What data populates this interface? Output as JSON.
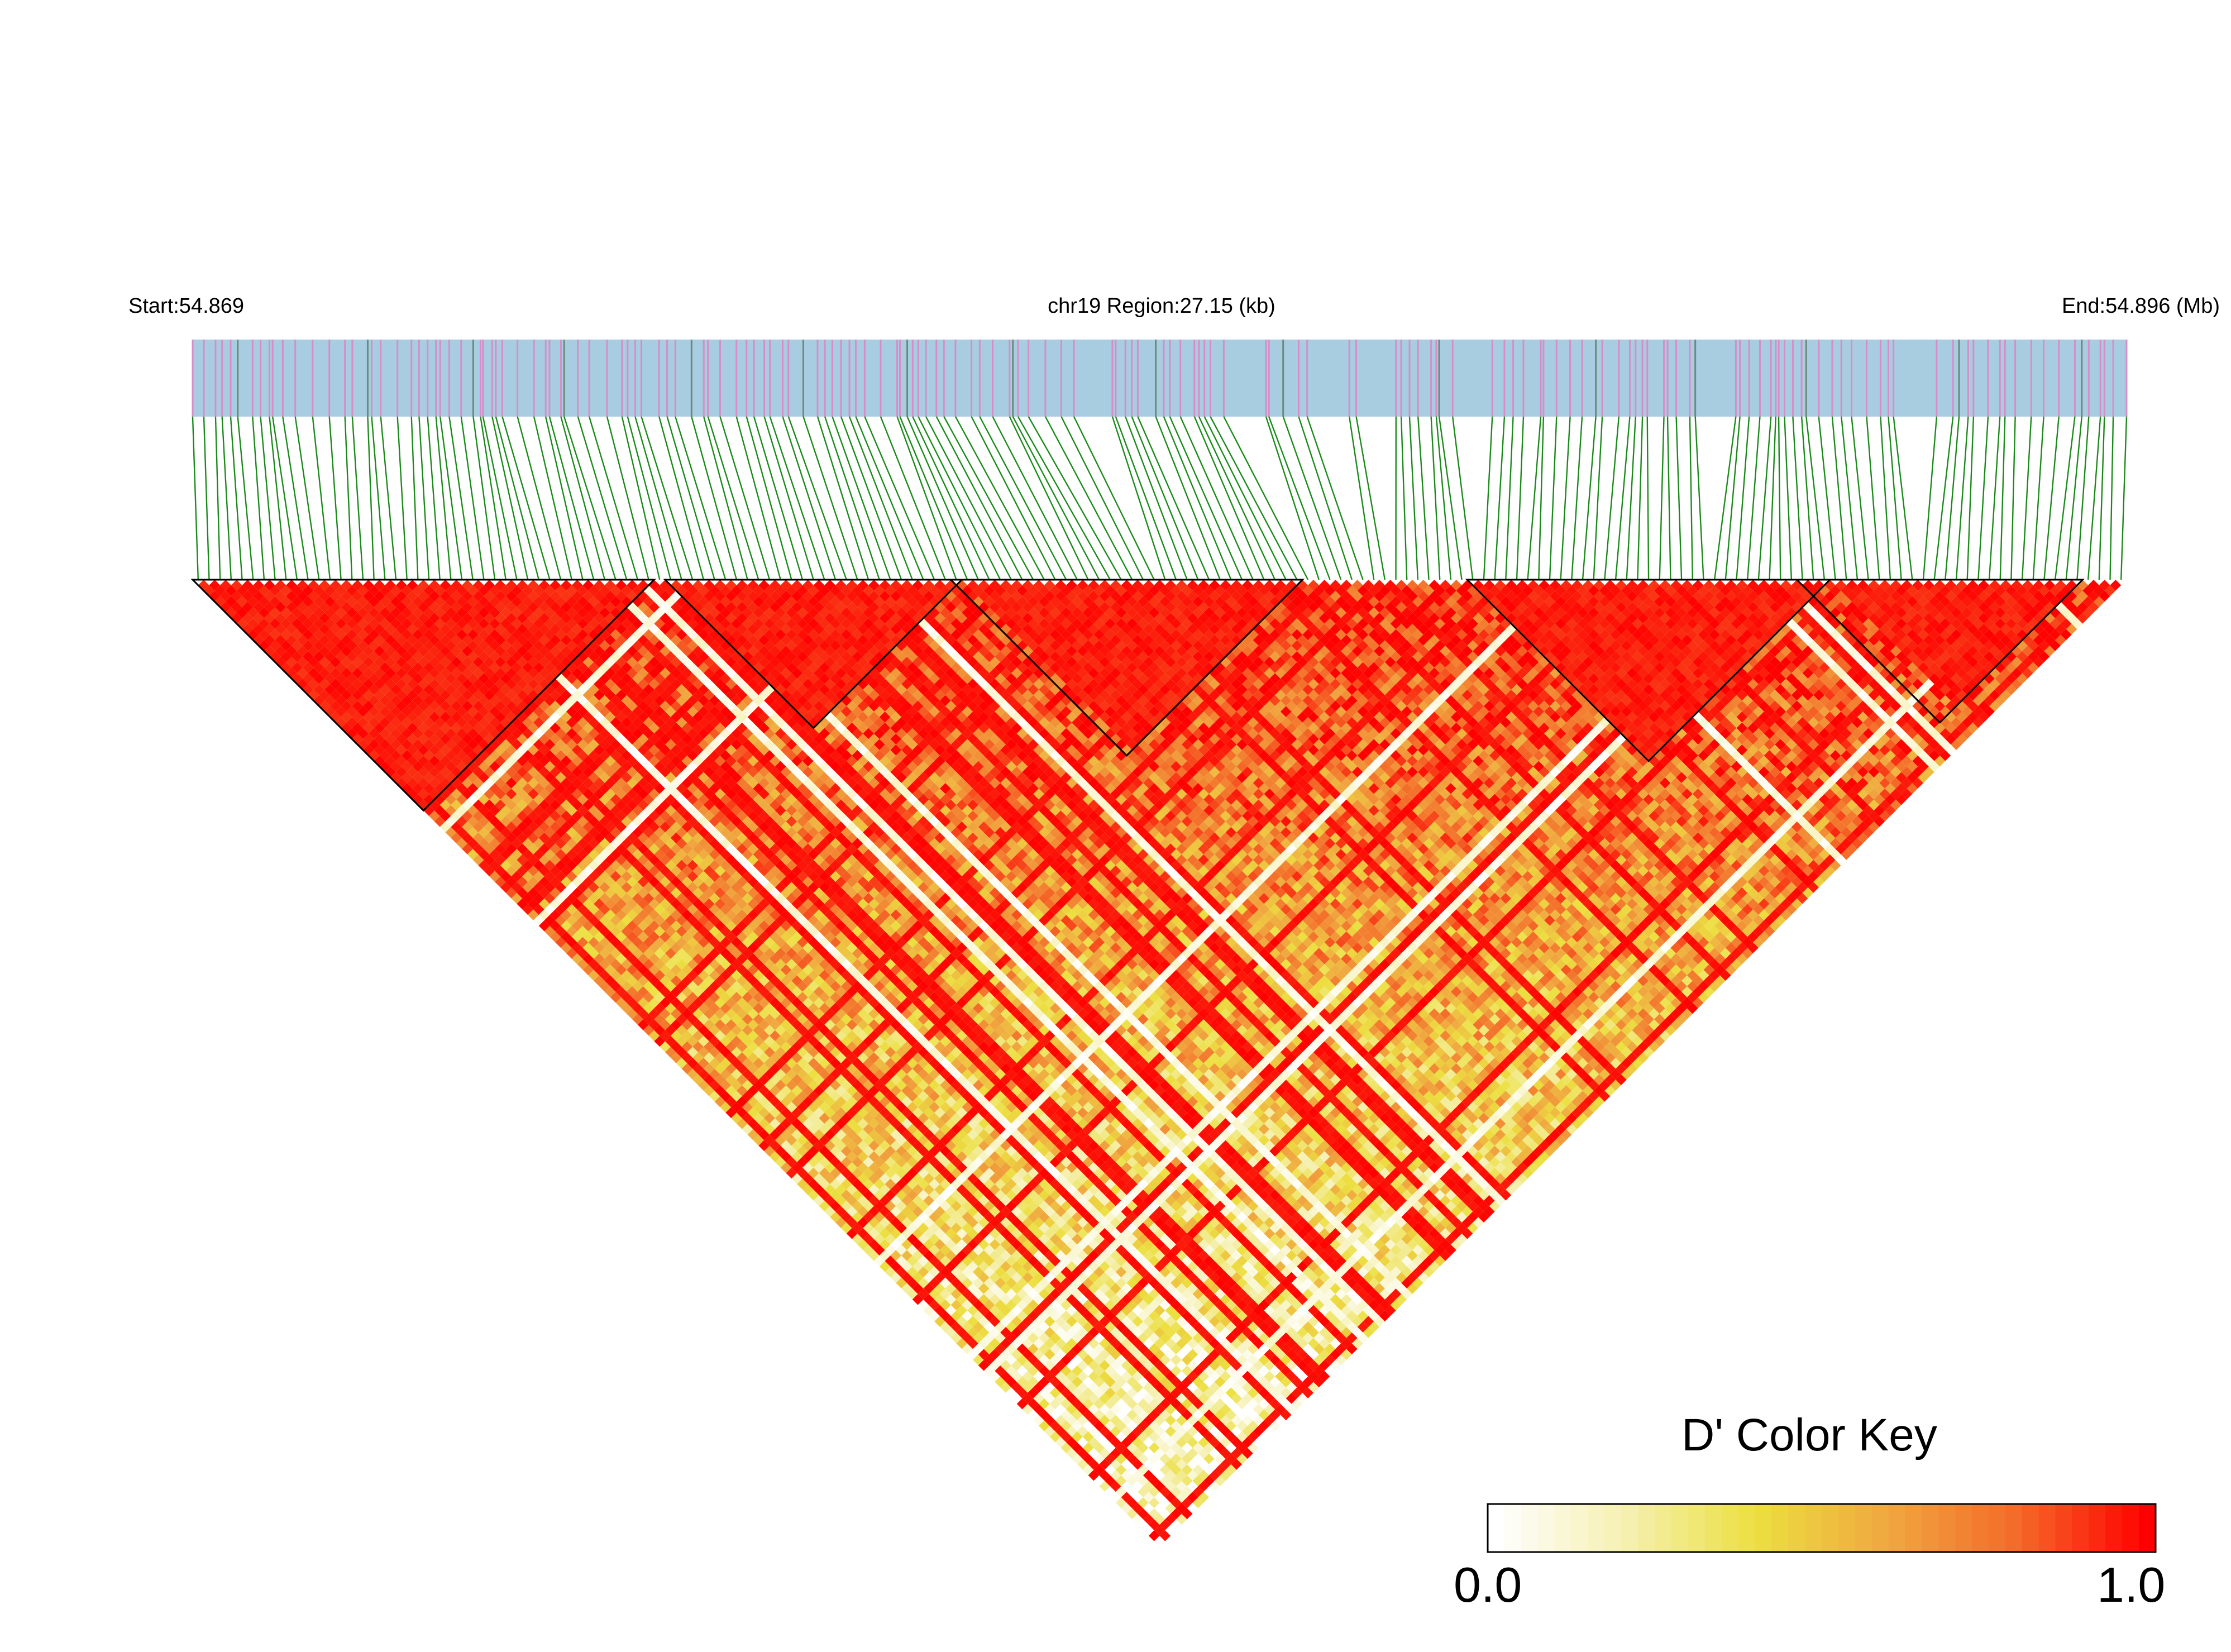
{
  "header": {
    "start_label": "Start:54.869",
    "region_label": "chr19 Region:27.15 (kb)",
    "end_label": "End:54.896 (Mb)"
  },
  "colors": {
    "track_background": "#a8cde0",
    "snp_tick": "#d98cc8",
    "snp_tick_alt": "#6a8a7a",
    "connector_line": "#1a8a1a",
    "block_outline": "#000000",
    "scale_low": "#ffffff",
    "scale_mid": "#ecdf40",
    "scale_high": "#ff0000"
  },
  "chart_data": {
    "type": "heatmap",
    "title": "",
    "chromosome": "chr19",
    "region_start_mb": 54.869,
    "region_end_mb": 54.896,
    "region_length_kb": 27.15,
    "snp_count": 176,
    "value_range": [
      0.0,
      1.0
    ],
    "haplotype_blocks_snp_index_ranges": [
      [
        0,
        41
      ],
      [
        43,
        69
      ],
      [
        69,
        100
      ],
      [
        116,
        148
      ],
      [
        146,
        171
      ]
    ],
    "color_key": {
      "title": "D' Color Key",
      "min_label": "0.0",
      "max_label": "1.0",
      "stops": [
        "#ffffff",
        "#f5f0b0",
        "#ecdf40",
        "#f0a840",
        "#f46a28",
        "#ff0000"
      ]
    }
  }
}
